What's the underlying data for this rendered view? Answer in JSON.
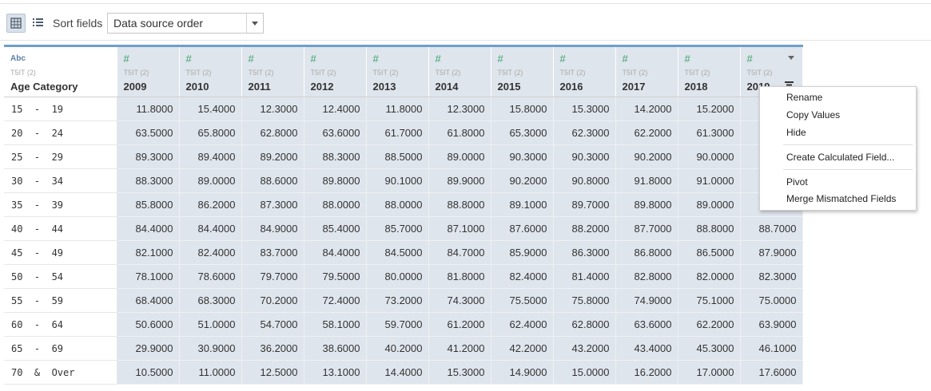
{
  "toolbar": {
    "grid_view_icon": "grid-icon",
    "list_view_icon": "list-icon",
    "sort_label": "Sort fields",
    "sort_value": "Data source order"
  },
  "columns": [
    {
      "type_label": "Abc",
      "source": "T5IT (2)",
      "name": "Age Category"
    },
    {
      "type_label": "#",
      "source": "T5IT (2)",
      "name": "2009"
    },
    {
      "type_label": "#",
      "source": "T5IT (2)",
      "name": "2010"
    },
    {
      "type_label": "#",
      "source": "T5IT (2)",
      "name": "2011"
    },
    {
      "type_label": "#",
      "source": "T5IT (2)",
      "name": "2012"
    },
    {
      "type_label": "#",
      "source": "T5IT (2)",
      "name": "2013"
    },
    {
      "type_label": "#",
      "source": "T5IT (2)",
      "name": "2014"
    },
    {
      "type_label": "#",
      "source": "T5IT (2)",
      "name": "2015"
    },
    {
      "type_label": "#",
      "source": "T5IT (2)",
      "name": "2016"
    },
    {
      "type_label": "#",
      "source": "T5IT (2)",
      "name": "2017"
    },
    {
      "type_label": "#",
      "source": "T5IT (2)",
      "name": "2018"
    },
    {
      "type_label": "#",
      "source": "T5IT (2)",
      "name": "2019"
    }
  ],
  "rows": [
    {
      "cat": "15  -  19",
      "values": [
        "11.8000",
        "15.4000",
        "12.3000",
        "12.4000",
        "11.8000",
        "12.3000",
        "15.8000",
        "15.3000",
        "14.2000",
        "15.2000",
        ""
      ]
    },
    {
      "cat": "20  -  24",
      "values": [
        "63.5000",
        "65.8000",
        "62.8000",
        "63.6000",
        "61.7000",
        "61.8000",
        "65.3000",
        "62.3000",
        "62.2000",
        "61.3000",
        ""
      ]
    },
    {
      "cat": "25  -  29",
      "values": [
        "89.3000",
        "89.4000",
        "89.2000",
        "88.3000",
        "88.5000",
        "89.0000",
        "90.3000",
        "90.3000",
        "90.2000",
        "90.0000",
        ""
      ]
    },
    {
      "cat": "30  -  34",
      "values": [
        "88.3000",
        "89.0000",
        "88.6000",
        "89.8000",
        "90.1000",
        "89.9000",
        "90.2000",
        "90.8000",
        "91.8000",
        "91.0000",
        ""
      ]
    },
    {
      "cat": "35  -  39",
      "values": [
        "85.8000",
        "86.2000",
        "87.3000",
        "88.0000",
        "88.0000",
        "88.8000",
        "89.1000",
        "89.7000",
        "89.8000",
        "89.0000",
        ""
      ]
    },
    {
      "cat": "40  -  44",
      "values": [
        "84.4000",
        "84.4000",
        "84.9000",
        "85.4000",
        "85.7000",
        "87.1000",
        "87.6000",
        "88.2000",
        "87.7000",
        "88.8000",
        "88.7000"
      ]
    },
    {
      "cat": "45  -  49",
      "values": [
        "82.1000",
        "82.4000",
        "83.7000",
        "84.4000",
        "84.5000",
        "84.7000",
        "85.9000",
        "86.3000",
        "86.8000",
        "86.5000",
        "87.9000"
      ]
    },
    {
      "cat": "50  -  54",
      "values": [
        "78.1000",
        "78.6000",
        "79.7000",
        "79.5000",
        "80.0000",
        "81.8000",
        "82.4000",
        "81.4000",
        "82.8000",
        "82.0000",
        "82.3000"
      ]
    },
    {
      "cat": "55  -  59",
      "values": [
        "68.4000",
        "68.3000",
        "70.2000",
        "72.4000",
        "73.2000",
        "74.3000",
        "75.5000",
        "75.8000",
        "74.9000",
        "75.1000",
        "75.0000"
      ]
    },
    {
      "cat": "60  -  64",
      "values": [
        "50.6000",
        "51.0000",
        "54.7000",
        "58.1000",
        "59.7000",
        "61.2000",
        "62.4000",
        "62.8000",
        "63.6000",
        "62.2000",
        "63.9000"
      ]
    },
    {
      "cat": "65  -  69",
      "values": [
        "29.9000",
        "30.9000",
        "36.2000",
        "38.6000",
        "40.2000",
        "41.2000",
        "42.2000",
        "43.2000",
        "43.4000",
        "45.3000",
        "46.1000"
      ]
    },
    {
      "cat": "70  &  Over",
      "values": [
        "10.5000",
        "11.0000",
        "12.5000",
        "13.1000",
        "14.4000",
        "15.3000",
        "14.9000",
        "15.0000",
        "16.2000",
        "17.0000",
        "17.6000"
      ]
    }
  ],
  "context_menu": {
    "rename": "Rename",
    "copy_values": "Copy Values",
    "hide": "Hide",
    "create_calculated_field": "Create Calculated Field...",
    "pivot": "Pivot",
    "merge_mismatched_fields": "Merge Mismatched Fields"
  },
  "colors": {
    "header_accent": "#6f9fc9",
    "numeric_cell_bg": "#dfe5ec",
    "numeric_type_icon": "#3aa36a",
    "string_type_icon": "#5b7fa3"
  }
}
